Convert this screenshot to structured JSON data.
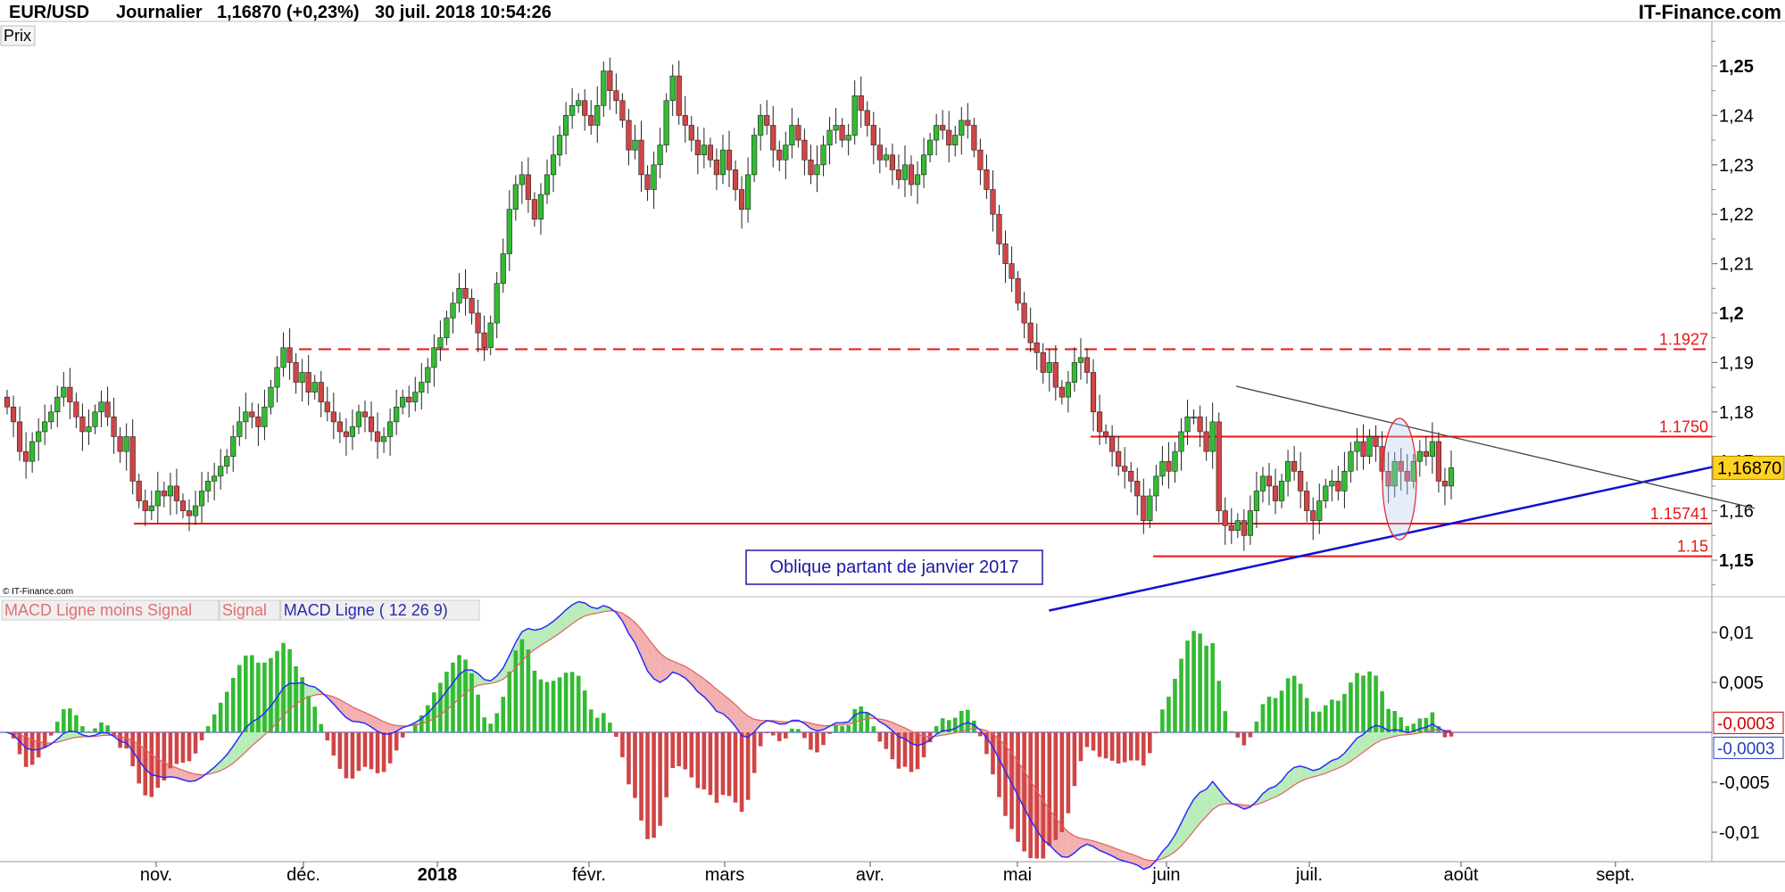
{
  "header": {
    "symbol": "EUR/USD",
    "period": "Journalier",
    "price": "1,16870 (+0,23%)",
    "datetime": "30 juil. 2018 10:54:26",
    "brand": "IT-Finance.com"
  },
  "price_panel": {
    "label": "Prix",
    "copyright": "© IT-Finance.com",
    "y_ticks": [
      "1,25",
      "1,24",
      "1,23",
      "1,22",
      "1,21",
      "1,2",
      "1,19",
      "1,18",
      "1,17",
      "1,16",
      "1,15"
    ],
    "bold_ticks": [
      "1,25",
      "1,2",
      "1,15"
    ],
    "last_price_tag": "1,16870",
    "annotation": "Oblique partant de janvier 2017"
  },
  "macd_panel": {
    "legend": [
      {
        "text": "MACD Ligne moins Signal",
        "color": "#e07070"
      },
      {
        "text": "Signal",
        "color": "#e07070"
      },
      {
        "text": "MACD Ligne ( 12 26 9)",
        "color": "#2a2aaa"
      }
    ],
    "y_ticks": [
      "0,01",
      "0,005",
      "-0,005",
      "-0,01"
    ],
    "value_tags": [
      {
        "text": "-0,0003",
        "color": "#cc0000"
      },
      {
        "text": "-0,0003",
        "color": "#1f3fbf"
      }
    ]
  },
  "x_axis": {
    "labels": [
      "nov.",
      "déc.",
      "2018",
      "févr.",
      "mars",
      "avr.",
      "mai",
      "juin",
      "juil.",
      "août",
      "sept."
    ],
    "bold_labels": [
      "2018"
    ]
  },
  "colors": {
    "up_candle": "#33bb33",
    "down_candle": "#d04545",
    "support_line": "#e81515",
    "trend_line": "#1010d0",
    "triangle_line": "#444444",
    "price_tag_bg": "#ffd21f",
    "macd_line": "#2a2aff",
    "signal_line": "#e06060",
    "hist_up": "#33bb33",
    "hist_down": "#d04545",
    "fill_up": "#b9ecb9",
    "fill_down": "#f2b0b0"
  },
  "chart_data": [
    {
      "type": "candlestick",
      "title": "EUR/USD Journalier",
      "ylim": [
        1.145,
        1.255
      ],
      "xlim": [
        "2017-10-05",
        "2018-09-30"
      ],
      "horizontal_levels": [
        {
          "label": "1.1927",
          "value": 1.1927,
          "style": "dashed"
        },
        {
          "label": "1.1750",
          "value": 1.175,
          "style": "solid"
        },
        {
          "label": "1.15741",
          "value": 1.15741,
          "style": "solid"
        },
        {
          "label": "1.15",
          "value": 1.1508,
          "style": "solid"
        }
      ],
      "trendlines": [
        {
          "name": "oblique",
          "from": [
            "2018-05-06",
            1.1398
          ],
          "to": [
            "2018-09-30",
            1.1707
          ]
        },
        {
          "name": "triangle",
          "from": [
            "2018-06-14",
            1.1852
          ],
          "to": [
            "2018-09-30",
            1.1605
          ]
        }
      ],
      "last_close": 1.1687,
      "closes": [
        1.181,
        1.178,
        1.172,
        1.17,
        1.174,
        1.176,
        1.178,
        1.18,
        1.183,
        1.185,
        1.182,
        1.179,
        1.176,
        1.177,
        1.18,
        1.182,
        1.179,
        1.175,
        1.172,
        1.175,
        1.166,
        1.162,
        1.16,
        1.161,
        1.164,
        1.163,
        1.165,
        1.162,
        1.16,
        1.159,
        1.161,
        1.164,
        1.166,
        1.167,
        1.169,
        1.171,
        1.175,
        1.178,
        1.18,
        1.179,
        1.177,
        1.181,
        1.185,
        1.189,
        1.193,
        1.19,
        1.186,
        1.188,
        1.184,
        1.186,
        1.182,
        1.18,
        1.178,
        1.176,
        1.175,
        1.177,
        1.18,
        1.179,
        1.176,
        1.174,
        1.175,
        1.178,
        1.181,
        1.183,
        1.182,
        1.184,
        1.186,
        1.189,
        1.193,
        1.195,
        1.199,
        1.202,
        1.205,
        1.203,
        1.2,
        1.196,
        1.193,
        1.198,
        1.206,
        1.212,
        1.221,
        1.226,
        1.228,
        1.223,
        1.219,
        1.224,
        1.228,
        1.232,
        1.236,
        1.24,
        1.242,
        1.243,
        1.24,
        1.238,
        1.242,
        1.249,
        1.245,
        1.243,
        1.239,
        1.233,
        1.235,
        1.228,
        1.225,
        1.23,
        1.234,
        1.243,
        1.248,
        1.24,
        1.238,
        1.235,
        1.232,
        1.234,
        1.231,
        1.228,
        1.233,
        1.229,
        1.225,
        1.221,
        1.228,
        1.236,
        1.24,
        1.238,
        1.233,
        1.231,
        1.234,
        1.238,
        1.235,
        1.231,
        1.228,
        1.23,
        1.234,
        1.237,
        1.238,
        1.235,
        1.236,
        1.244,
        1.241,
        1.238,
        1.234,
        1.231,
        1.232,
        1.229,
        1.227,
        1.23,
        1.226,
        1.228,
        1.232,
        1.235,
        1.238,
        1.237,
        1.234,
        1.236,
        1.239,
        1.238,
        1.233,
        1.229,
        1.225,
        1.22,
        1.214,
        1.21,
        1.207,
        1.202,
        1.198,
        1.194,
        1.192,
        1.188,
        1.19,
        1.185,
        1.183,
        1.186,
        1.19,
        1.191,
        1.188,
        1.18,
        1.176,
        1.175,
        1.172,
        1.169,
        1.168,
        1.166,
        1.163,
        1.158,
        1.163,
        1.167,
        1.17,
        1.168,
        1.172,
        1.176,
        1.179,
        1.179,
        1.176,
        1.172,
        1.178,
        1.16,
        1.157,
        1.156,
        1.158,
        1.155,
        1.16,
        1.164,
        1.167,
        1.165,
        1.162,
        1.166,
        1.17,
        1.168,
        1.164,
        1.16,
        1.158,
        1.162,
        1.165,
        1.166,
        1.164,
        1.168,
        1.172,
        1.174,
        1.171,
        1.175,
        1.173,
        1.168,
        1.165,
        1.17,
        1.168,
        1.166,
        1.17,
        1.172,
        1.171,
        1.174,
        1.166,
        1.165,
        1.1687
      ]
    },
    {
      "type": "macd",
      "title": "MACD Ligne ( 12 26 9)",
      "params": [
        12,
        26,
        9
      ],
      "ylim": [
        -0.0125,
        0.0135
      ],
      "series": [
        {
          "name": "MACD Ligne",
          "values": "computed from closes (EMA12 - EMA26)"
        },
        {
          "name": "Signal",
          "values": "EMA9 of MACD Ligne"
        },
        {
          "name": "MACD Ligne moins Signal",
          "values": "histogram"
        }
      ],
      "last_values": {
        "macd": -0.0003,
        "signal": -0.0003
      }
    }
  ]
}
